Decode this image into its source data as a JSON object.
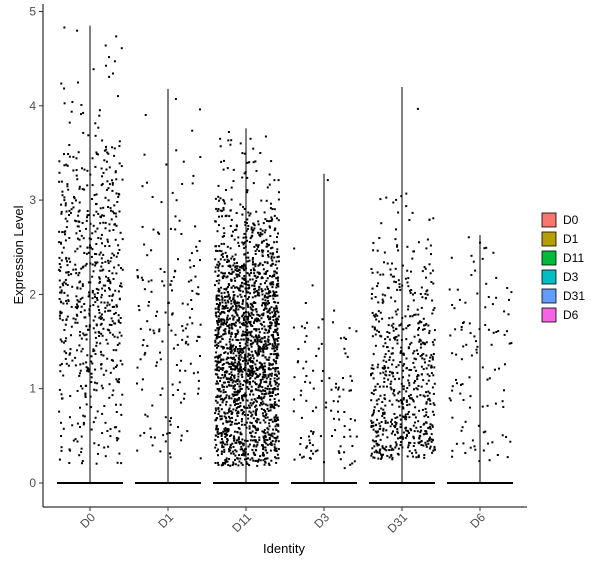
{
  "chart_data": {
    "type": "scatter",
    "subtype": "violin-jitter",
    "xlabel": "Identity",
    "ylabel": "Expression Level",
    "ylim": [
      -0.25,
      5.05
    ],
    "yticks": [
      0,
      1,
      2,
      3,
      4,
      5
    ],
    "categories": [
      "D0",
      "D1",
      "D11",
      "D3",
      "D31",
      "D6"
    ],
    "colors": [
      "#F8766D",
      "#B79F00",
      "#00BA38",
      "#00BFC4",
      "#619CFF",
      "#F564E3"
    ],
    "point_color": "#000000",
    "legend": {
      "position": "right",
      "entries": [
        "D0",
        "D1",
        "D11",
        "D3",
        "D31",
        "D6"
      ]
    },
    "series": [
      {
        "category": "D0",
        "max": 4.85,
        "points": 650,
        "center": 2.1,
        "spread": 0.95,
        "min": 0.2
      },
      {
        "category": "D1",
        "max": 4.18,
        "points": 170,
        "center": 1.6,
        "spread": 0.95,
        "min": 0.2
      },
      {
        "category": "D11",
        "max": 3.76,
        "points": 2000,
        "center": 1.4,
        "spread": 0.8,
        "min": 0.18
      },
      {
        "category": "D3",
        "max": 3.28,
        "points": 110,
        "center": 0.9,
        "spread": 0.7,
        "min": 0.15
      },
      {
        "category": "D31",
        "max": 4.2,
        "points": 650,
        "center": 1.1,
        "spread": 0.8,
        "min": 0.25
      },
      {
        "category": "D6",
        "max": 2.63,
        "points": 110,
        "center": 1.3,
        "spread": 0.75,
        "min": 0.2
      }
    ],
    "grid": false
  }
}
